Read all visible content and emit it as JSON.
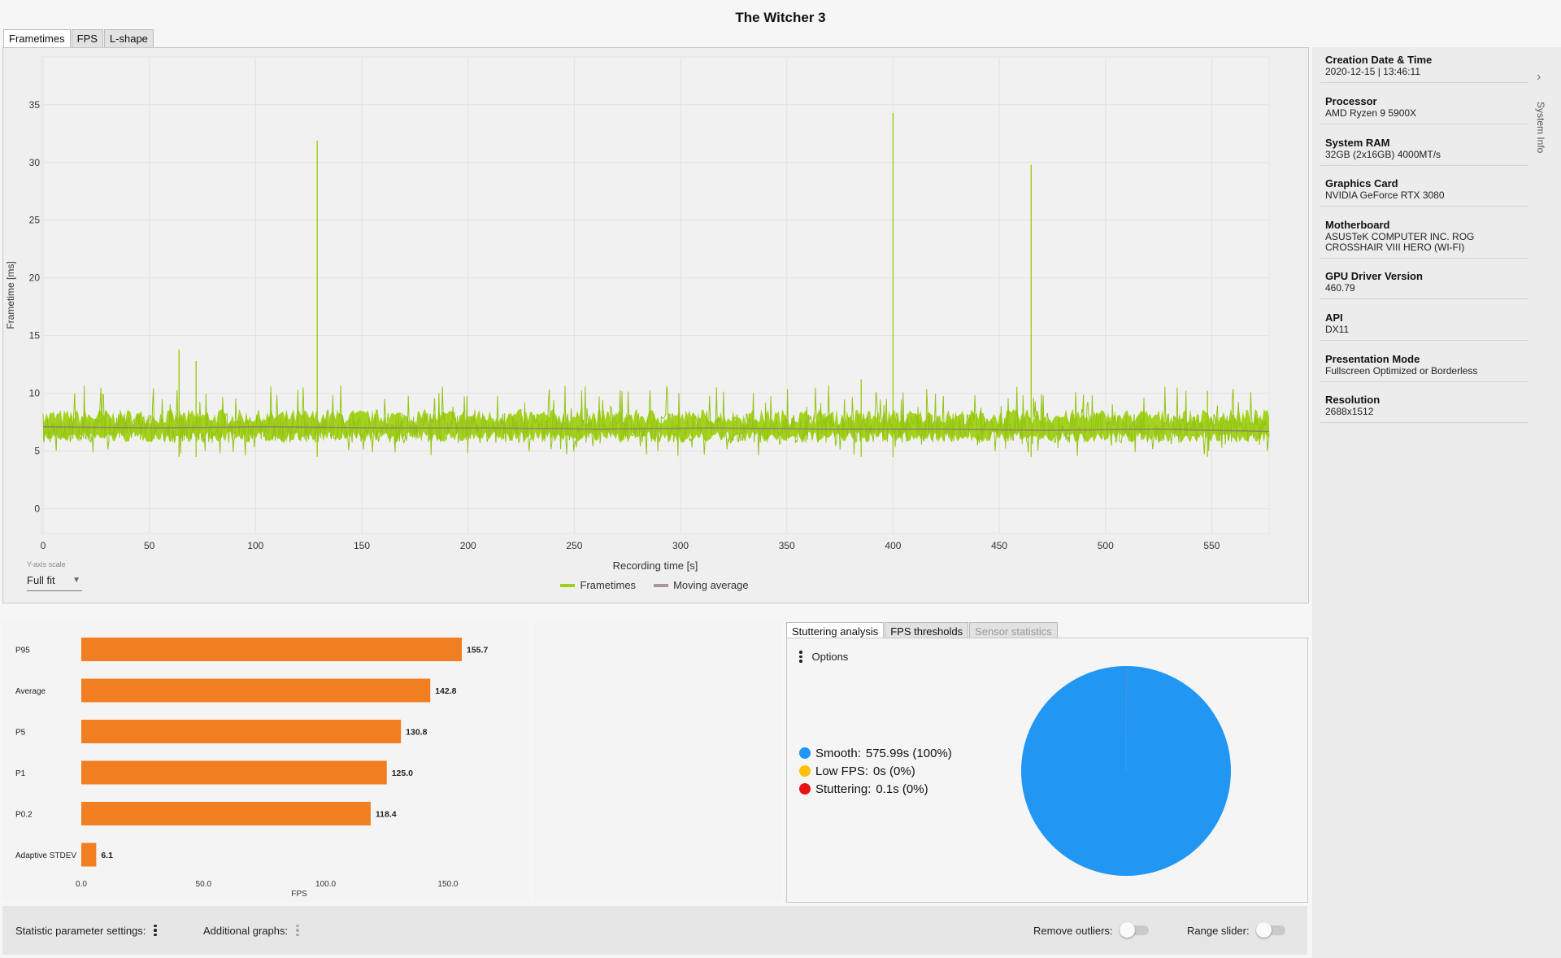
{
  "title": "The Witcher 3",
  "main_tabs": [
    "Frametimes",
    "FPS",
    "L-shape"
  ],
  "frametime_chart": {
    "ylabel": "Frametime [ms]",
    "xlabel": "Recording time [s]",
    "y_ticks": [
      "0",
      "5",
      "10",
      "15",
      "20",
      "25",
      "30",
      "35"
    ],
    "x_ticks": [
      "0",
      "50",
      "100",
      "150",
      "200",
      "250",
      "300",
      "350",
      "400",
      "450",
      "500",
      "550"
    ],
    "yaxis_scale_label": "Y-axis scale",
    "yaxis_scale_value": "Full fit",
    "legend": [
      {
        "name": "Frametimes",
        "color": "#9fcf1d"
      },
      {
        "name": "Moving average",
        "color": "#ab9795"
      }
    ]
  },
  "chart_data": [
    {
      "type": "line",
      "title": "",
      "xlabel": "Recording time [s]",
      "ylabel": "Frametime [ms]",
      "xlim": [
        0,
        577
      ],
      "ylim": [
        -2,
        39
      ],
      "grid": true,
      "legend_position": "bottom-center",
      "series": [
        {
          "name": "Frametimes",
          "mean_ms": 7.0,
          "noise_band_ms": [
            5.5,
            9.0
          ],
          "spikes": [
            {
              "x": 64,
              "y": 13.8
            },
            {
              "x": 72,
              "y": 12.8
            },
            {
              "x": 129,
              "y": 31.9
            },
            {
              "x": 385,
              "y": 11.2
            },
            {
              "x": 400,
              "y": 34.3
            },
            {
              "x": 465,
              "y": 29.8
            },
            {
              "x": 548,
              "y": 10.2
            }
          ]
        },
        {
          "name": "Moving average",
          "values_ms": [
            7.1,
            7.0,
            7.1,
            7.0,
            7.0,
            6.9,
            7.0,
            6.9,
            6.9,
            6.8,
            6.9,
            6.7
          ]
        }
      ]
    },
    {
      "type": "bar",
      "orientation": "horizontal",
      "xlabel": "FPS",
      "xlim": [
        0,
        155.7
      ],
      "x_ticks": [
        "0.0",
        "50.0",
        "100.0",
        "150.0"
      ],
      "categories": [
        "P95",
        "Average",
        "P5",
        "P1",
        "P0.2",
        "Adaptive STDEV"
      ],
      "values": [
        155.7,
        142.8,
        130.8,
        125.0,
        118.4,
        6.1
      ],
      "value_labels": [
        "155.7",
        "142.8",
        "130.8",
        "125.0",
        "118.4",
        "6.1"
      ],
      "color": "#f17f21"
    },
    {
      "type": "pie",
      "categories": [
        "Smooth",
        "Low FPS",
        "Stuttering"
      ],
      "values": [
        575.99,
        0,
        0.1
      ],
      "colors": [
        "#2196f3",
        "#ffc107",
        "#e51414"
      ]
    }
  ],
  "system_info": {
    "items": [
      {
        "key": "Creation Date & Time",
        "value": "2020-12-15  |  13:46:11"
      },
      {
        "key": "Processor",
        "value": "AMD Ryzen 9 5900X"
      },
      {
        "key": "System RAM",
        "value": "32GB (2x16GB) 4000MT/s"
      },
      {
        "key": "Graphics Card",
        "value": "NVIDIA GeForce RTX 3080"
      },
      {
        "key": "Motherboard",
        "value": "ASUSTeK COMPUTER INC. ROG CROSSHAIR VIII HERO (WI-FI)"
      },
      {
        "key": "GPU Driver Version",
        "value": "460.79"
      },
      {
        "key": "API",
        "value": "DX11"
      },
      {
        "key": "Presentation Mode",
        "value": "Fullscreen Optimized or Borderless"
      },
      {
        "key": "Resolution",
        "value": "2688x1512"
      }
    ],
    "vertical_label": "System Info",
    "toggle_icon": "chevron-right-icon"
  },
  "stutter": {
    "tabs": [
      "Stuttering analysis",
      "FPS thresholds",
      "Sensor statistics"
    ],
    "options_label": "Options",
    "legend": [
      {
        "label": "Smooth:",
        "value": "575.99s (100%)",
        "color": "#2196f3"
      },
      {
        "label": "Low FPS:",
        "value": "0s (0%)",
        "color": "#ffc107"
      },
      {
        "label": "Stuttering:",
        "value": "0.1s (0%)",
        "color": "#e51414"
      }
    ]
  },
  "footer": {
    "statistic_settings": "Statistic parameter settings:",
    "additional_graphs": "Additional graphs:",
    "remove_outliers": "Remove outliers:",
    "range_slider": "Range slider:"
  }
}
